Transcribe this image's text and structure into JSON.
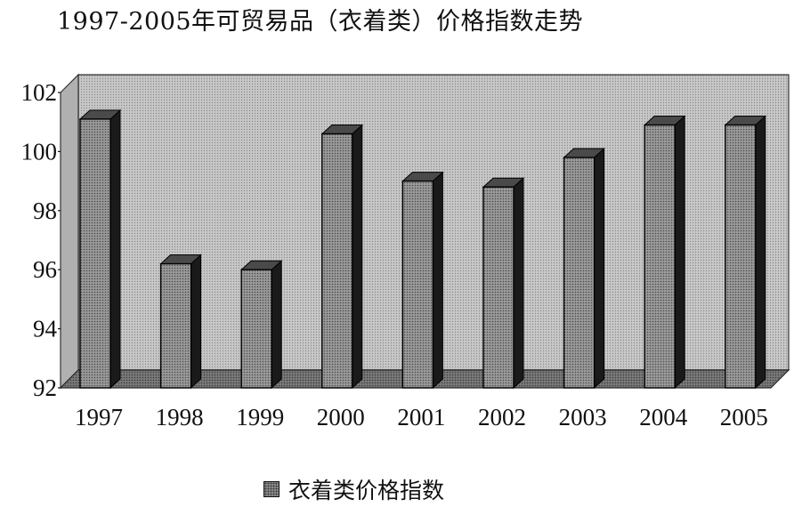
{
  "colors": {
    "bar_front": "#8f8f8f",
    "bar_top": "#4a4a4a",
    "bar_side": "#1a1a1a",
    "back_wall": "#c4c4c4",
    "left_wall": "#b0b0b0",
    "floor": "#777777"
  },
  "chart_data": {
    "type": "bar",
    "title": "1997-2005年可贸易品（衣着类）价格指数走势",
    "categories": [
      "1997",
      "1998",
      "1999",
      "2000",
      "2001",
      "2002",
      "2003",
      "2004",
      "2005"
    ],
    "series": [
      {
        "name": "衣着类价格指数",
        "values": [
          101.1,
          96.2,
          96.0,
          100.6,
          99.0,
          98.8,
          99.8,
          100.9,
          100.9
        ]
      }
    ],
    "ylim": [
      92,
      102
    ],
    "yticks": [
      "92",
      "94",
      "96",
      "98",
      "100",
      "102"
    ],
    "legend_position": "bottom",
    "grid": false,
    "style": "3d-column"
  }
}
